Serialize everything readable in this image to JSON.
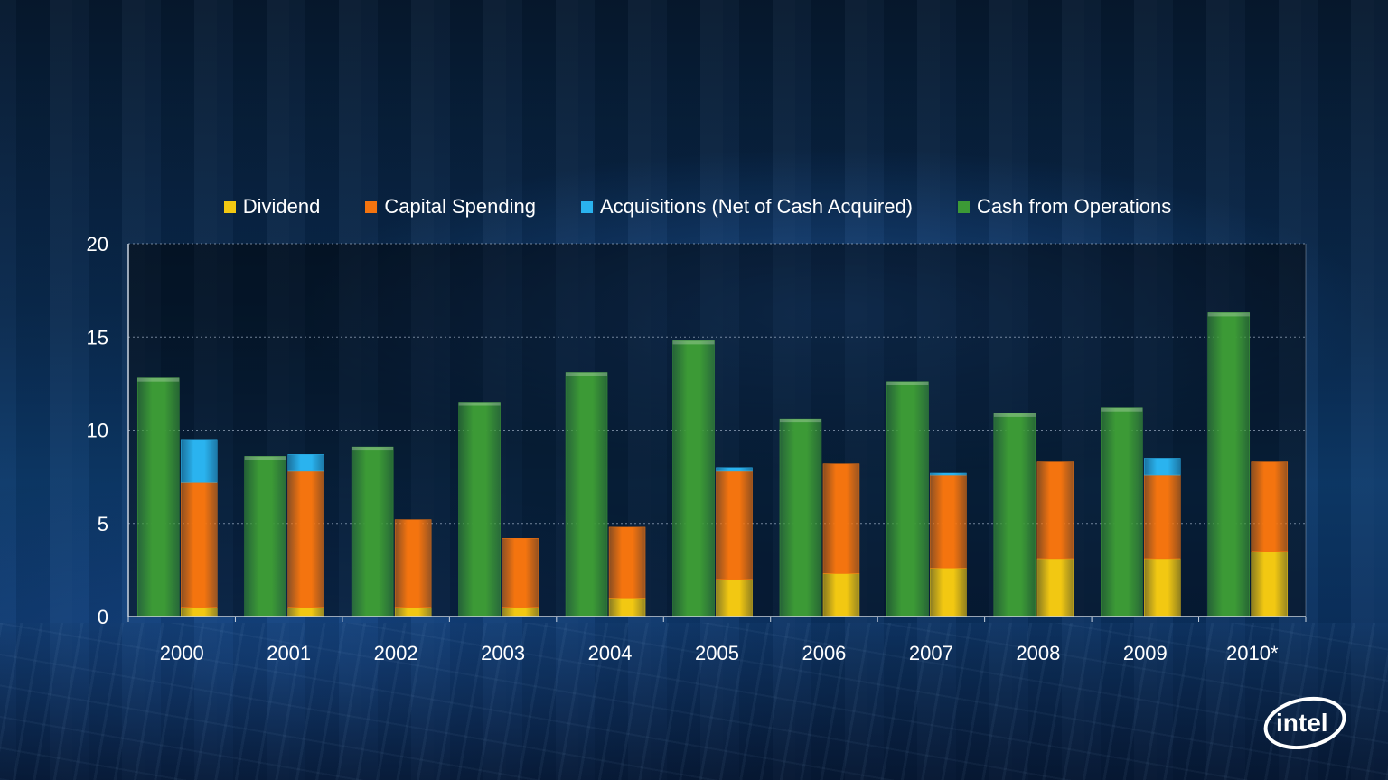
{
  "chart_data": {
    "type": "bar",
    "categories": [
      "2000",
      "2001",
      "2002",
      "2003",
      "2004",
      "2005",
      "2006",
      "2007",
      "2008",
      "2009",
      "2010*"
    ],
    "series": [
      {
        "name": "Cash from Operations",
        "stack": "ops",
        "color": "#3c9a36",
        "values": [
          12.8,
          8.6,
          9.1,
          11.5,
          13.1,
          14.8,
          10.6,
          12.6,
          10.9,
          11.2,
          16.3
        ]
      },
      {
        "name": "Dividend",
        "stack": "uses",
        "color": "#f2c812",
        "values": [
          0.5,
          0.5,
          0.5,
          0.5,
          1.0,
          2.0,
          2.3,
          2.6,
          3.1,
          3.1,
          3.5
        ]
      },
      {
        "name": "Capital Spending",
        "stack": "uses",
        "color": "#f4740f",
        "values": [
          6.7,
          7.3,
          4.7,
          3.7,
          3.8,
          5.8,
          5.9,
          5.0,
          5.2,
          4.5,
          4.8
        ]
      },
      {
        "name": "Acquisitions (Net of Cash Acquired)",
        "stack": "uses",
        "color": "#2ab3ef",
        "values": [
          2.3,
          0.9,
          0.0,
          0.0,
          0.0,
          0.2,
          0.0,
          0.1,
          0.0,
          0.9,
          0.0
        ]
      }
    ],
    "legend_order": [
      "Dividend",
      "Capital Spending",
      "Acquisitions (Net of Cash Acquired)",
      "Cash from Operations"
    ],
    "legend_position": "top-center",
    "ylim": [
      0,
      20
    ],
    "yticks": [
      0,
      5,
      10,
      15,
      20
    ],
    "grid": true,
    "title": "",
    "xlabel": "",
    "ylabel": ""
  },
  "branding": {
    "logo_text": "intel"
  }
}
